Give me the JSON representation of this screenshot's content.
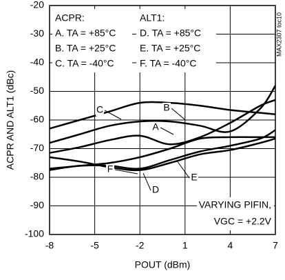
{
  "chart_data": {
    "type": "line",
    "xlabel": "POUT (dBm)",
    "ylabel": "ACPR AND ALT1 (dBc)",
    "side_note": "MAX2307 toc10",
    "key": {
      "left": [
        "ACPR:",
        "A. TA = +85°C",
        "B. TA = +25°C",
        "C. TA = -40°C"
      ],
      "right": [
        "ALT1:",
        "D. TA = +85°C",
        "E. TA = +25°C",
        "F. TA = -40°C"
      ]
    },
    "annotations": [
      "VARYING PIFIN,",
      "VGC = +2.2V"
    ],
    "x": [
      -8,
      -6,
      -4,
      -2,
      0,
      2,
      4,
      6,
      7
    ],
    "series": [
      {
        "name": "A",
        "color": "#000000",
        "values": [
          -71.5,
          -69.5,
          -67,
          -65.5,
          -68.5,
          -66,
          -61,
          -55,
          -53
        ]
      },
      {
        "name": "B",
        "color": "#000000",
        "values": [
          -68,
          -65,
          -62,
          -60.5,
          -60.5,
          -62,
          -64,
          -56,
          -48
        ]
      },
      {
        "name": "C",
        "color": "#000000",
        "values": [
          -63,
          -60,
          -57,
          -54,
          -54,
          -55,
          -56.5,
          -57.5,
          -58
        ]
      },
      {
        "name": "D",
        "color": "#000000",
        "values": [
          -77.5,
          -76,
          -76,
          -77,
          -74,
          -71,
          -69,
          -66.5,
          -63.5
        ]
      },
      {
        "name": "E",
        "color": "#000000",
        "values": [
          -73,
          -74.5,
          -76.5,
          -77.5,
          -75,
          -72,
          -70.5,
          -68,
          -66.5
        ]
      },
      {
        "name": "F",
        "color": "#000000",
        "values": [
          -77,
          -76,
          -75,
          -73,
          -70,
          -66.5,
          -66,
          -66,
          -66
        ]
      }
    ],
    "xlim": [
      -8,
      7
    ],
    "xticks": [
      -8,
      -5,
      -2,
      1,
      4,
      7
    ],
    "ylim": [
      -100,
      -20
    ],
    "yticks": [
      -20,
      -30,
      -40,
      -50,
      -60,
      -70,
      -80,
      -90,
      -100
    ],
    "grid": true
  }
}
